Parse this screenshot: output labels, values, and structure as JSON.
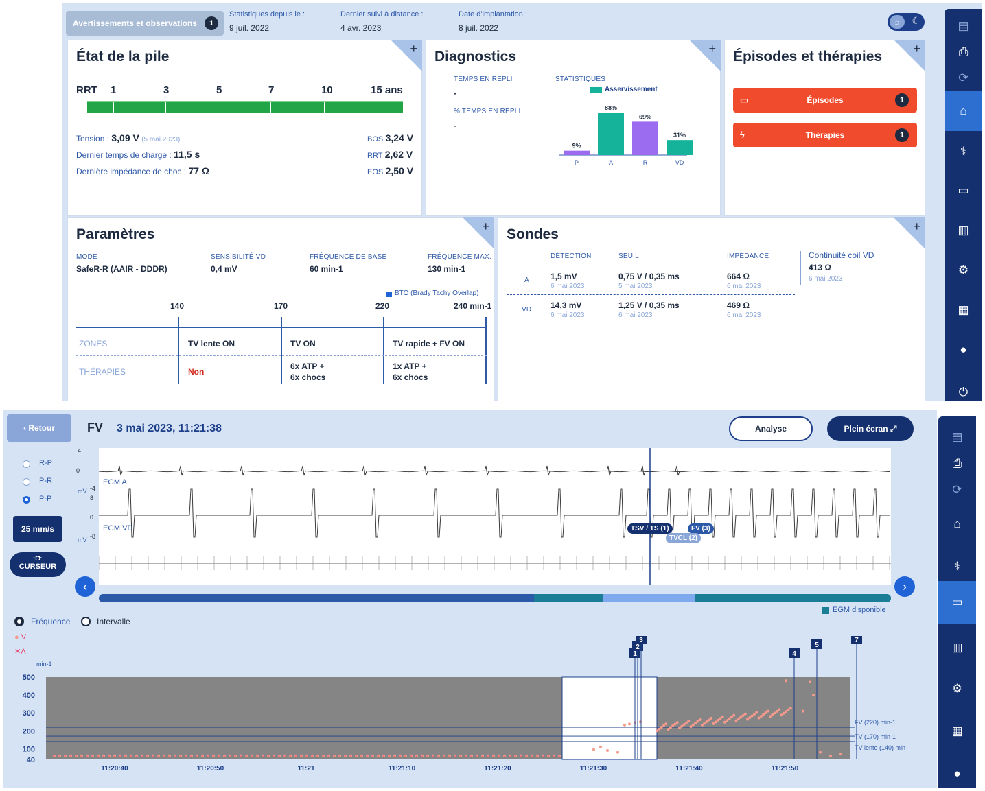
{
  "header": {
    "warnings_label": "Avertissements et observations",
    "warnings_count": "1",
    "stats_since_label": "Statistiques depuis le :",
    "stats_since_value": "9 juil. 2022",
    "remote_label": "Dernier suivi à distance :",
    "remote_value": "4 avr. 2023",
    "implant_label": "Date d'implantation :",
    "implant_value": "8 juil. 2022"
  },
  "battery": {
    "title": "État de la pile",
    "rrt": "RRT",
    "ticks": [
      "1",
      "3",
      "5",
      "7",
      "10",
      "15 ans"
    ],
    "tension_label": "Tension :",
    "tension_value": "3,09 V",
    "tension_date": "(5 mai 2023)",
    "charge_label": "Dernier temps de charge :",
    "charge_value": "11,5 s",
    "imp_label": "Dernière impédance de choc :",
    "imp_value": "77 Ω",
    "bos_label": "BOS",
    "bos_value": "3,24 V",
    "rrt_label": "RRT",
    "rrt_value": "2,62 V",
    "eos_label": "EOS",
    "eos_value": "2,50 V"
  },
  "diagnostics": {
    "title": "Diagnostics",
    "fallback_time_label": "TEMPS EN REPLI",
    "fallback_time_value": "-",
    "fallback_pct_label": "% TEMPS EN REPLI",
    "fallback_pct_value": "-",
    "stats_label": "STATISTIQUES",
    "legend": "Asservissement"
  },
  "chart_data": [
    {
      "type": "bar",
      "categories": [
        "P",
        "A",
        "R",
        "VD"
      ],
      "values": [
        9,
        88,
        69,
        31
      ],
      "labels": [
        "9%",
        "88%",
        "69%",
        "31%"
      ],
      "colors": [
        "#9b6cf0",
        "#14b39a",
        "#9b6cf0",
        "#14b39a"
      ],
      "series_name": "Asservissement"
    },
    {
      "type": "scatter",
      "ylabel": "min-1",
      "yticks": [
        "500",
        "400",
        "300",
        "200",
        "100",
        "40"
      ],
      "ylim": [
        40,
        500
      ],
      "xticks": [
        "11:20:40",
        "11:20:50",
        "11:21",
        "11:21:10",
        "11:21:20",
        "11:21:30",
        "11:21:40",
        "11:21:50"
      ],
      "zones": [
        {
          "label": "FV (220) min-1",
          "y": 220
        },
        {
          "label": "TV (170) min-1",
          "y": 170
        },
        {
          "label": "TV lente (140) min-",
          "y": 140
        }
      ],
      "markers": [
        "1",
        "2",
        "3",
        "4",
        "5",
        "7"
      ],
      "series": [
        {
          "name": "V",
          "color": "#f59a8c"
        },
        {
          "name": "A",
          "color": "#e8416a"
        }
      ]
    }
  ],
  "episodes": {
    "title": "Épisodes et thérapies",
    "episodes_label": "Épisodes",
    "episodes_count": "1",
    "therapies_label": "Thérapies",
    "therapies_count": "1"
  },
  "params": {
    "title": "Paramètres",
    "mode_label": "MODE",
    "mode_value": "SafeR-R (AAIR - DDDR)",
    "sens_label": "SENSIBILITÉ VD",
    "sens_value": "0,4 mV",
    "base_label": "FRÉQUENCE DE BASE",
    "base_value": "60 min-1",
    "max_label": "FRÉQUENCE MAX.",
    "max_value": "130 min-1",
    "bto": "BTO (Brady Tachy Overlap)",
    "scale": [
      "140",
      "170",
      "220",
      "240 min-1"
    ],
    "zones_label": "ZONES",
    "therapies_label": "THÉRAPIES",
    "zones": [
      "TV lente ON",
      "TV ON",
      "TV rapide + FV ON"
    ],
    "ther_non": "Non",
    "ther_tv": [
      "6x ATP  +",
      "6x chocs"
    ],
    "ther_fv": [
      "1x ATP  +",
      "6x chocs"
    ]
  },
  "leads": {
    "title": "Sondes",
    "detection": "DÉTECTION",
    "threshold": "SEUIL",
    "impedance": "IMPÉDANCE",
    "coil_label": "Continuité coil VD",
    "coil_value": "413 Ω",
    "coil_date": "6 mai 2023",
    "rows": [
      {
        "ch": "A",
        "det": "1,5 mV",
        "det_d": "6 mai 2023",
        "th": "0,75 V / 0,35 ms",
        "th_d": "5 mai 2023",
        "imp": "664 Ω",
        "imp_d": "6 mai 2023"
      },
      {
        "ch": "VD",
        "det": "14,3 mV",
        "det_d": "6 mai 2023",
        "th": "1,25 V / 0,35 ms",
        "th_d": "6 mai 2023",
        "imp": "469 Ω",
        "imp_d": "6 mai 2023"
      }
    ]
  },
  "episode_view": {
    "back": "Retour",
    "type": "FV",
    "datetime": "3 mai 2023, 11:21:38",
    "analyse": "Analyse",
    "fullscreen": "Plein écran",
    "radios": [
      "R-P",
      "P-R",
      "P-P"
    ],
    "speed": "25 mm/s",
    "cursor": "CURSEUR",
    "egm_a": "EGM A",
    "egm_vd": "EGM VD",
    "mv": "mV",
    "a_ticks": [
      "4",
      "0",
      "-4"
    ],
    "v_ticks": [
      "8",
      "0",
      "-8"
    ],
    "tag_tsv": "TSV / TS (1)",
    "tag_fv": "FV (3)",
    "tag_tvcl": "TVCL (2)",
    "egm_avail": "EGM disponible",
    "freq": "Fréquence",
    "interval": "Intervalle",
    "legend_v": "V",
    "legend_a": "A"
  }
}
